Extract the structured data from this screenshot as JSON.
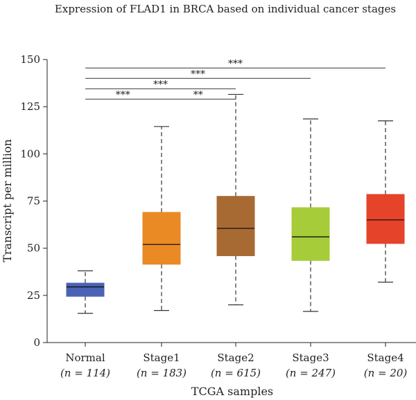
{
  "chart_data": {
    "type": "box",
    "title": "Expression of FLAD1 in BRCA based on individual cancer stages",
    "xlabel": "TCGA samples",
    "ylabel": "Transcript per million",
    "ylim": [
      0,
      150
    ],
    "yticks": [
      0,
      25,
      50,
      75,
      100,
      125,
      150
    ],
    "grid": false,
    "categories": [
      {
        "name": "Normal",
        "n_label": "(n = 114)",
        "color": "#4a63b5",
        "whisker_low": 15.5,
        "q1": 24.5,
        "median": 29.5,
        "q3": 31.5,
        "whisker_high": 38
      },
      {
        "name": "Stage1",
        "n_label": "(n = 183)",
        "color": "#e98a25",
        "whisker_low": 17,
        "q1": 41.5,
        "median": 52,
        "q3": 69,
        "whisker_high": 114.5
      },
      {
        "name": "Stage2",
        "n_label": "(n = 615)",
        "color": "#a86a33",
        "whisker_low": 20,
        "q1": 46,
        "median": 60.5,
        "q3": 77.5,
        "whisker_high": 131.5
      },
      {
        "name": "Stage3",
        "n_label": "(n = 247)",
        "color": "#a6cc3a",
        "whisker_low": 16.5,
        "q1": 43.5,
        "median": 56,
        "q3": 71.5,
        "whisker_high": 118.5
      },
      {
        "name": "Stage4",
        "n_label": "(n = 20)",
        "color": "#e5432a",
        "whisker_low": 32,
        "q1": 52.5,
        "median": 65,
        "q3": 78.5,
        "whisker_high": 117.5
      }
    ],
    "significance": [
      {
        "from": 0,
        "to": 4,
        "y": 145.5,
        "label": "***",
        "label_x": "mid"
      },
      {
        "from": 0,
        "to": 3,
        "y": 140,
        "label": "***",
        "label_x": "mid"
      },
      {
        "from": 0,
        "to": 2,
        "y": 134.5,
        "label": "***",
        "label_x": "mid"
      },
      {
        "from": 0,
        "to": 2,
        "y": 129,
        "label": "***",
        "label_x": "left"
      },
      {
        "from": 0,
        "to": 2,
        "y": 129,
        "label": "**",
        "label_x": "right",
        "no_line": true
      }
    ]
  }
}
